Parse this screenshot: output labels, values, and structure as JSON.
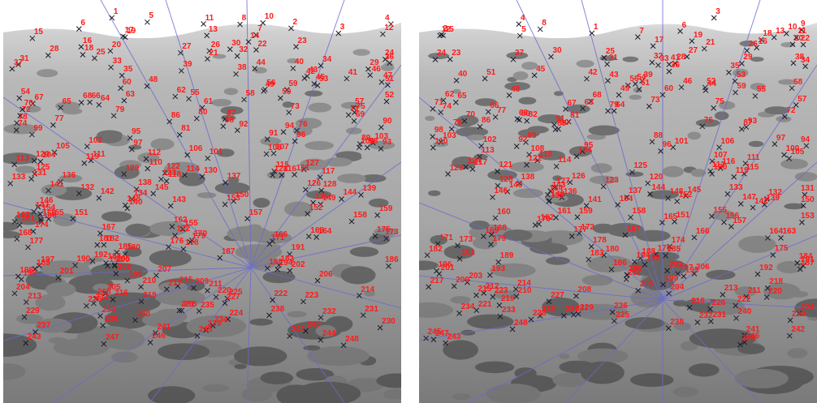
{
  "colors": {
    "label": "#ff1a1a",
    "marker": "#1a1a2a",
    "epipolar_line": "#6a6ad0",
    "sky": "#ffffff"
  },
  "left_panel": {
    "labels": [
      "1",
      "2",
      "3",
      "4",
      "5",
      "6",
      "7",
      "8",
      "10",
      "11",
      "12",
      "13",
      "14",
      "15",
      "16",
      "17",
      "18",
      "19",
      "20",
      "21",
      "22",
      "23",
      "24",
      "25",
      "26",
      "27",
      "28",
      "29",
      "30",
      "31",
      "32",
      "33",
      "34",
      "35",
      "36",
      "37",
      "38",
      "39",
      "40",
      "41",
      "42",
      "43",
      "44",
      "45",
      "46",
      "47",
      "48",
      "49",
      "50",
      "51",
      "52",
      "53",
      "54",
      "55",
      "56",
      "57",
      "58",
      "59",
      "60",
      "61",
      "62",
      "63",
      "64",
      "65",
      "66",
      "67",
      "68",
      "69",
      "70",
      "71",
      "72",
      "73",
      "74",
      "75",
      "76",
      "77",
      "78",
      "79",
      "80",
      "81",
      "86",
      "87",
      "88",
      "89",
      "90",
      "91",
      "92",
      "93",
      "94",
      "95",
      "96",
      "97",
      "98",
      "99",
      "100",
      "101",
      "102",
      "103",
      "104",
      "105",
      "106",
      "107",
      "108",
      "110",
      "111",
      "112",
      "113",
      "114",
      "115",
      "116",
      "117",
      "118",
      "119",
      "120",
      "121",
      "122",
      "123",
      "124",
      "125",
      "126",
      "127",
      "128",
      "129",
      "130",
      "131",
      "132",
      "133",
      "134",
      "135",
      "136",
      "137",
      "138",
      "139",
      "140",
      "141",
      "142",
      "143",
      "144",
      "145",
      "146",
      "147",
      "148",
      "149",
      "150",
      "151",
      "152",
      "153",
      "154",
      "155",
      "156",
      "157",
      "158",
      "159",
      "160",
      "161",
      "162",
      "163",
      "164",
      "165",
      "166",
      "167",
      "168",
      "169",
      "170",
      "171",
      "172",
      "173",
      "174",
      "175",
      "176",
      "177",
      "178",
      "179",
      "180",
      "181",
      "182",
      "183",
      "184",
      "185",
      "186",
      "187",
      "188",
      "189",
      "190",
      "191",
      "192",
      "193",
      "194",
      "195",
      "196",
      "197",
      "198",
      "199",
      "200",
      "201",
      "202",
      "203",
      "204",
      "205",
      "206",
      "207",
      "208",
      "209",
      "210",
      "211",
      "212",
      "213",
      "214",
      "215",
      "216",
      "217",
      "218",
      "219",
      "220",
      "221",
      "222",
      "223",
      "224",
      "225",
      "226",
      "227",
      "228",
      "229",
      "230",
      "231",
      "232",
      "233",
      "234",
      "235",
      "236",
      "237",
      "238",
      "239",
      "240",
      "241",
      "242",
      "243",
      "244",
      "245",
      "246",
      "247",
      "248"
    ]
  },
  "right_panel": {
    "labels": [
      "1",
      "2",
      "3",
      "4",
      "5",
      "6",
      "7",
      "8",
      "9",
      "10",
      "11",
      "12",
      "13",
      "15",
      "16",
      "17",
      "18",
      "19",
      "20",
      "21",
      "22",
      "23",
      "24",
      "25",
      "26",
      "27",
      "28",
      "29",
      "30",
      "31",
      "32",
      "33",
      "34",
      "35",
      "36",
      "37",
      "38",
      "39",
      "40",
      "41",
      "42",
      "43",
      "44",
      "45",
      "46",
      "48",
      "49",
      "51",
      "52",
      "53",
      "54",
      "55",
      "56",
      "57",
      "58",
      "59",
      "60",
      "61",
      "62",
      "63",
      "64",
      "65",
      "66",
      "67",
      "68",
      "69",
      "70",
      "71",
      "72",
      "73",
      "74",
      "75",
      "76",
      "77",
      "78",
      "79",
      "80",
      "81",
      "82",
      "86",
      "87",
      "88",
      "89",
      "90",
      "91",
      "92",
      "93",
      "94",
      "95",
      "96",
      "97",
      "98",
      "99",
      "100",
      "101",
      "102",
      "103",
      "104",
      "105",
      "106",
      "107",
      "108",
      "110",
      "111",
      "112",
      "113",
      "114",
      "115",
      "116",
      "117",
      "118",
      "119",
      "120",
      "121",
      "122",
      "123",
      "124",
      "125",
      "126",
      "127",
      "128",
      "129",
      "130",
      "131",
      "132",
      "133",
      "134",
      "135",
      "136",
      "137",
      "138",
      "139",
      "140",
      "141",
      "142",
      "143",
      "144",
      "145",
      "146",
      "147",
      "148",
      "149",
      "150",
      "151",
      "152",
      "153",
      "154",
      "155",
      "156",
      "157",
      "158",
      "159",
      "160",
      "161",
      "162",
      "163",
      "164",
      "165",
      "166",
      "167",
      "168",
      "169",
      "170",
      "171",
      "172",
      "173",
      "174",
      "175",
      "176",
      "177",
      "178",
      "179",
      "180",
      "181",
      "182",
      "183",
      "184",
      "185",
      "186",
      "187",
      "188",
      "189",
      "190",
      "191",
      "192",
      "193",
      "194",
      "195",
      "196",
      "197",
      "198",
      "199",
      "200",
      "201",
      "202",
      "203",
      "204",
      "205",
      "206",
      "207",
      "208",
      "209",
      "210",
      "211",
      "212",
      "213",
      "214",
      "215",
      "216",
      "217",
      "218",
      "219",
      "220",
      "221",
      "222",
      "223",
      "224",
      "225",
      "226",
      "227",
      "228",
      "229",
      "230",
      "231",
      "232",
      "233",
      "234",
      "235",
      "236",
      "237",
      "238",
      "239",
      "240",
      "241",
      "242",
      "243",
      "244",
      "245",
      "246",
      "247",
      "248"
    ]
  }
}
